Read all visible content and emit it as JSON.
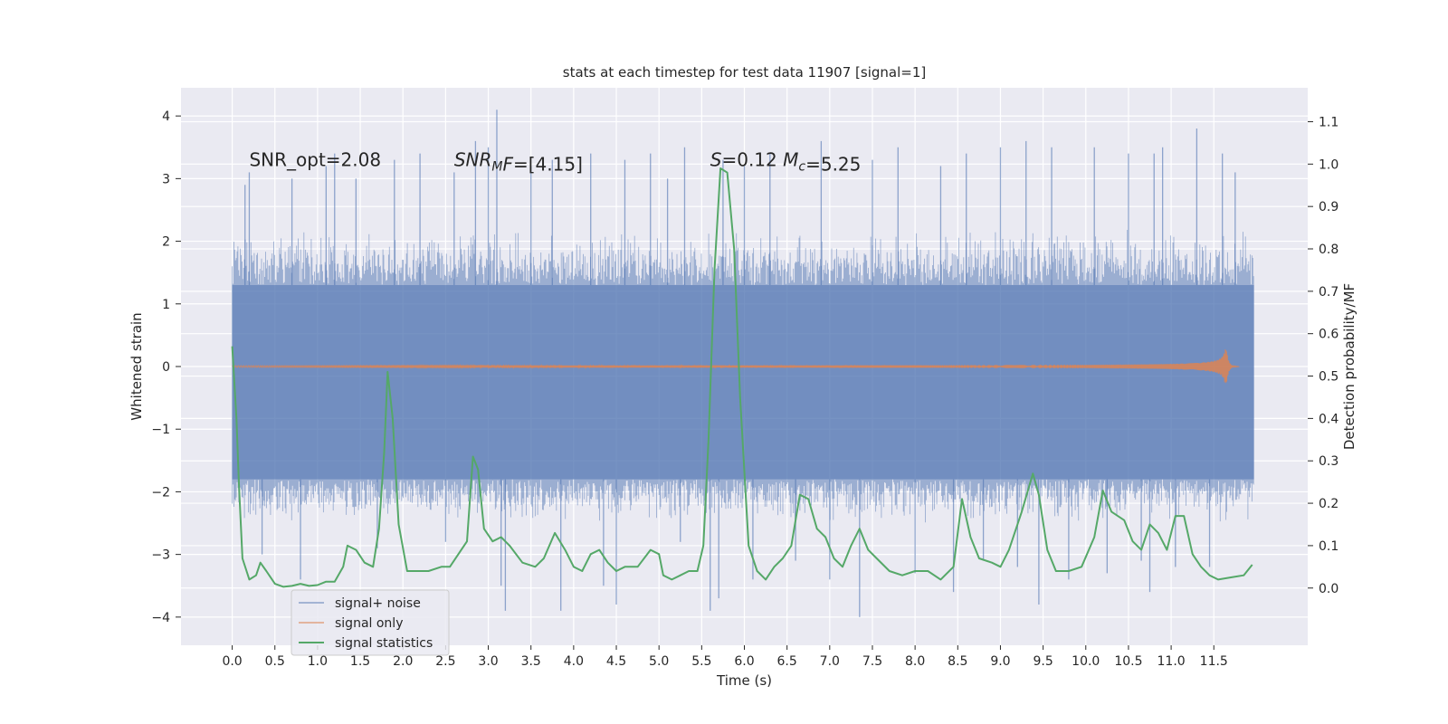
{
  "chart_data": {
    "type": "line",
    "title": "stats at each timestep for test data 11907 [signal=1]",
    "xlabel": "Time (s)",
    "ylabel_left": "Whitened strain",
    "ylabel_right": "Detection probability/MF",
    "xlim": [
      -0.6,
      12.6
    ],
    "ylim_left": [
      -4.45,
      4.45
    ],
    "ylim_right": [
      -0.135,
      1.18
    ],
    "x_ticks": [
      0.0,
      0.5,
      1.0,
      1.5,
      2.0,
      2.5,
      3.0,
      3.5,
      4.0,
      4.5,
      5.0,
      5.5,
      6.0,
      6.5,
      7.0,
      7.5,
      8.0,
      8.5,
      9.0,
      9.5,
      10.0,
      10.5,
      11.0,
      11.5
    ],
    "x_tick_labels": [
      "0.0",
      "0.5",
      "1.0",
      "1.5",
      "2.0",
      "2.5",
      "3.0",
      "3.5",
      "4.0",
      "4.5",
      "5.0",
      "5.5",
      "6.0",
      "6.5",
      "7.0",
      "7.5",
      "8.0",
      "8.5",
      "9.0",
      "9.5",
      "10.0",
      "10.5",
      "11.0",
      "11.5"
    ],
    "y_left_ticks": [
      4,
      3,
      2,
      1,
      0,
      -1,
      -2,
      -3,
      -4
    ],
    "y_left_tick_labels": [
      "4",
      "3",
      "2",
      "1",
      "0",
      "−1",
      "−2",
      "−3",
      "−4"
    ],
    "y_right_ticks": [
      1.1,
      1.0,
      0.9,
      0.8,
      0.7,
      0.6,
      0.5,
      0.4,
      0.3,
      0.2,
      0.1,
      0.0
    ],
    "y_right_tick_labels": [
      "1.1",
      "1.0",
      "0.9",
      "0.8",
      "0.7",
      "0.6",
      "0.5",
      "0.4",
      "0.3",
      "0.2",
      "0.1",
      "0.0"
    ],
    "grid": true,
    "legend_position": "lower-left",
    "annotations": [
      {
        "x": 0.2,
        "y": 3.2,
        "parts": [
          {
            "text": "SNR_opt=2.08",
            "style": "normal"
          }
        ]
      },
      {
        "x": 2.6,
        "y": 3.2,
        "parts": [
          {
            "text": "SNR",
            "style": "italic"
          },
          {
            "text": "M",
            "style": "italic-sub"
          },
          {
            "text": "F",
            "style": "italic"
          },
          {
            "text": "=[4.15]",
            "style": "normal"
          }
        ]
      },
      {
        "x": 5.6,
        "y": 3.2,
        "parts": [
          {
            "text": "S",
            "style": "italic"
          },
          {
            "text": "=0.12   ",
            "style": "normal"
          },
          {
            "text": "M",
            "style": "italic"
          },
          {
            "text": "c",
            "style": "italic-sub"
          },
          {
            "text": "=5.25",
            "style": "normal"
          }
        ]
      }
    ],
    "series": [
      {
        "name": "signal+ noise",
        "axis": "left",
        "kind": "noise-band",
        "color": "#4c72b0",
        "alpha": 0.5,
        "x_range": [
          0.0,
          11.97
        ],
        "dense_envelope": [
          -1.8,
          1.3
        ],
        "typical_range": [
          -2.5,
          2.2
        ],
        "spikes": [
          [
            0.15,
            2.9
          ],
          [
            0.2,
            3.1
          ],
          [
            0.35,
            -3.0
          ],
          [
            0.7,
            3.0
          ],
          [
            0.8,
            -3.4
          ],
          [
            1.1,
            3.2
          ],
          [
            1.2,
            3.4
          ],
          [
            1.45,
            3.0
          ],
          [
            1.7,
            -2.9
          ],
          [
            1.9,
            3.3
          ],
          [
            2.2,
            3.4
          ],
          [
            2.5,
            -2.8
          ],
          [
            2.6,
            3.1
          ],
          [
            2.85,
            3.6
          ],
          [
            3.0,
            3.5
          ],
          [
            3.1,
            4.1
          ],
          [
            3.15,
            -3.5
          ],
          [
            3.2,
            -3.9
          ],
          [
            3.5,
            3.2
          ],
          [
            3.75,
            3.3
          ],
          [
            3.85,
            -3.9
          ],
          [
            4.2,
            3.4
          ],
          [
            4.35,
            -3.5
          ],
          [
            4.5,
            -3.8
          ],
          [
            4.6,
            3.3
          ],
          [
            4.9,
            3.4
          ],
          [
            5.1,
            3.0
          ],
          [
            5.25,
            -2.8
          ],
          [
            5.3,
            3.5
          ],
          [
            5.6,
            -3.9
          ],
          [
            5.7,
            -3.7
          ],
          [
            5.75,
            3.3
          ],
          [
            6.0,
            3.2
          ],
          [
            6.1,
            -3.4
          ],
          [
            6.3,
            3.4
          ],
          [
            6.6,
            -3.1
          ],
          [
            6.9,
            3.6
          ],
          [
            7.0,
            -3.4
          ],
          [
            7.35,
            -4.0
          ],
          [
            7.5,
            3.3
          ],
          [
            7.8,
            3.5
          ],
          [
            8.0,
            -3.3
          ],
          [
            8.3,
            3.2
          ],
          [
            8.45,
            -3.6
          ],
          [
            8.6,
            3.4
          ],
          [
            8.8,
            -3.1
          ],
          [
            9.0,
            3.5
          ],
          [
            9.2,
            -3.2
          ],
          [
            9.3,
            3.6
          ],
          [
            9.45,
            -3.8
          ],
          [
            9.6,
            3.5
          ],
          [
            9.8,
            -3.4
          ],
          [
            10.1,
            3.5
          ],
          [
            10.25,
            -3.3
          ],
          [
            10.5,
            3.4
          ],
          [
            10.65,
            -3.1
          ],
          [
            10.75,
            -3.6
          ],
          [
            10.8,
            3.4
          ],
          [
            10.9,
            3.5
          ],
          [
            11.05,
            -3.2
          ],
          [
            11.3,
            3.8
          ],
          [
            11.45,
            -3.2
          ],
          [
            11.6,
            3.4
          ],
          [
            11.75,
            3.1
          ]
        ]
      },
      {
        "name": "signal only",
        "axis": "left",
        "kind": "chirp",
        "color": "#dd8452",
        "x_range": [
          0.0,
          11.8
        ],
        "peak_time": 11.65,
        "peak_amplitude": 0.27
      },
      {
        "name": "signal statistics",
        "axis": "right",
        "kind": "line",
        "color": "#55a868",
        "points": [
          [
            0.0,
            0.57
          ],
          [
            0.05,
            0.4
          ],
          [
            0.08,
            0.24
          ],
          [
            0.12,
            0.07
          ],
          [
            0.2,
            0.02
          ],
          [
            0.28,
            0.03
          ],
          [
            0.33,
            0.06
          ],
          [
            0.4,
            0.04
          ],
          [
            0.5,
            0.01
          ],
          [
            0.6,
            0.003
          ],
          [
            0.7,
            0.005
          ],
          [
            0.8,
            0.01
          ],
          [
            0.9,
            0.005
          ],
          [
            1.0,
            0.007
          ],
          [
            1.1,
            0.015
          ],
          [
            1.2,
            0.015
          ],
          [
            1.3,
            0.05
          ],
          [
            1.35,
            0.1
          ],
          [
            1.45,
            0.09
          ],
          [
            1.55,
            0.06
          ],
          [
            1.65,
            0.05
          ],
          [
            1.72,
            0.14
          ],
          [
            1.78,
            0.32
          ],
          [
            1.82,
            0.51
          ],
          [
            1.88,
            0.4
          ],
          [
            1.95,
            0.15
          ],
          [
            2.05,
            0.04
          ],
          [
            2.15,
            0.04
          ],
          [
            2.3,
            0.04
          ],
          [
            2.45,
            0.05
          ],
          [
            2.55,
            0.05
          ],
          [
            2.65,
            0.08
          ],
          [
            2.75,
            0.11
          ],
          [
            2.82,
            0.31
          ],
          [
            2.88,
            0.28
          ],
          [
            2.95,
            0.14
          ],
          [
            3.05,
            0.11
          ],
          [
            3.15,
            0.12
          ],
          [
            3.25,
            0.1
          ],
          [
            3.4,
            0.06
          ],
          [
            3.55,
            0.05
          ],
          [
            3.65,
            0.07
          ],
          [
            3.78,
            0.13
          ],
          [
            3.9,
            0.09
          ],
          [
            4.0,
            0.05
          ],
          [
            4.1,
            0.04
          ],
          [
            4.2,
            0.08
          ],
          [
            4.3,
            0.09
          ],
          [
            4.4,
            0.06
          ],
          [
            4.5,
            0.04
          ],
          [
            4.6,
            0.05
          ],
          [
            4.75,
            0.05
          ],
          [
            4.9,
            0.09
          ],
          [
            5.0,
            0.08
          ],
          [
            5.05,
            0.03
          ],
          [
            5.15,
            0.02
          ],
          [
            5.25,
            0.03
          ],
          [
            5.35,
            0.04
          ],
          [
            5.45,
            0.04
          ],
          [
            5.52,
            0.1
          ],
          [
            5.58,
            0.35
          ],
          [
            5.65,
            0.75
          ],
          [
            5.72,
            0.99
          ],
          [
            5.8,
            0.98
          ],
          [
            5.88,
            0.8
          ],
          [
            5.95,
            0.45
          ],
          [
            6.05,
            0.1
          ],
          [
            6.15,
            0.04
          ],
          [
            6.25,
            0.02
          ],
          [
            6.35,
            0.05
          ],
          [
            6.45,
            0.07
          ],
          [
            6.55,
            0.1
          ],
          [
            6.65,
            0.22
          ],
          [
            6.75,
            0.21
          ],
          [
            6.85,
            0.14
          ],
          [
            6.95,
            0.12
          ],
          [
            7.05,
            0.07
          ],
          [
            7.15,
            0.05
          ],
          [
            7.25,
            0.1
          ],
          [
            7.35,
            0.14
          ],
          [
            7.45,
            0.09
          ],
          [
            7.55,
            0.07
          ],
          [
            7.7,
            0.04
          ],
          [
            7.85,
            0.03
          ],
          [
            8.0,
            0.04
          ],
          [
            8.15,
            0.04
          ],
          [
            8.3,
            0.02
          ],
          [
            8.45,
            0.05
          ],
          [
            8.55,
            0.21
          ],
          [
            8.65,
            0.12
          ],
          [
            8.75,
            0.07
          ],
          [
            8.9,
            0.06
          ],
          [
            9.0,
            0.05
          ],
          [
            9.1,
            0.09
          ],
          [
            9.25,
            0.18
          ],
          [
            9.38,
            0.27
          ],
          [
            9.45,
            0.22
          ],
          [
            9.55,
            0.09
          ],
          [
            9.65,
            0.04
          ],
          [
            9.8,
            0.04
          ],
          [
            9.95,
            0.05
          ],
          [
            10.1,
            0.12
          ],
          [
            10.2,
            0.23
          ],
          [
            10.3,
            0.18
          ],
          [
            10.45,
            0.16
          ],
          [
            10.55,
            0.11
          ],
          [
            10.65,
            0.09
          ],
          [
            10.75,
            0.15
          ],
          [
            10.85,
            0.13
          ],
          [
            10.95,
            0.09
          ],
          [
            11.05,
            0.17
          ],
          [
            11.15,
            0.17
          ],
          [
            11.25,
            0.08
          ],
          [
            11.35,
            0.05
          ],
          [
            11.45,
            0.03
          ],
          [
            11.55,
            0.02
          ],
          [
            11.7,
            0.025
          ],
          [
            11.85,
            0.03
          ],
          [
            11.95,
            0.055
          ]
        ]
      }
    ]
  }
}
